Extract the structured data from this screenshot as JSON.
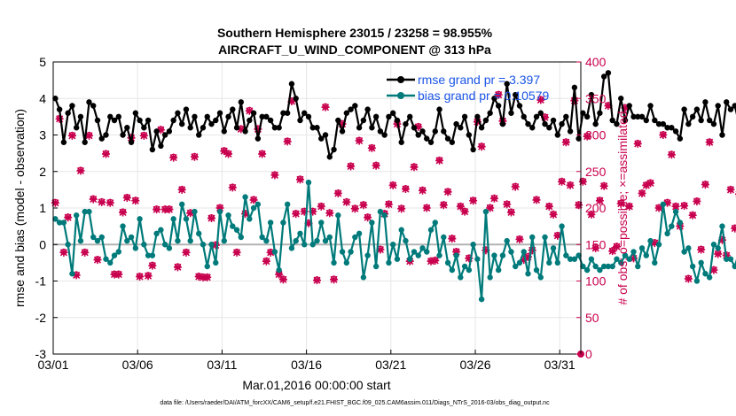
{
  "chart_data": {
    "type": "line",
    "title": "Southern Hemisphere 23015 / 23258 = 98.955%",
    "subtitle": "AIRCRAFT_U_WIND_COMPONENT @ 313 hPa",
    "xlabel": "Mar.01,2016 00:00:00 start",
    "ylabel": "rmse and bias (model - observation)",
    "y2label": "# of obs: o=possible; ×=assimilated",
    "footer": "data file: /Users/raeder/DAI/ATM_forcXX/CAM6_setup/f.e21.FHIST_BGC.f09_025.CAM6assim.011/Diags_NTrS_2016-03/obs_diag_output.nc",
    "x_ticks": [
      "03/01",
      "03/06",
      "03/11",
      "03/16",
      "03/21",
      "03/26",
      "03/31"
    ],
    "x_tick_days": [
      1,
      6,
      11,
      16,
      21,
      26,
      31
    ],
    "xlim": [
      1,
      32.25
    ],
    "ylim": [
      -3,
      5
    ],
    "y_ticks": [
      "-3",
      "-2",
      "-1",
      "0",
      "1",
      "2",
      "3",
      "4",
      "5"
    ],
    "y2lim": [
      0,
      400
    ],
    "y2_ticks": [
      "0",
      "50",
      "100",
      "150",
      "200",
      "250",
      "300",
      "350",
      "400"
    ],
    "grid": true,
    "legend": [
      "rmse grand pr = 3.397",
      "bias grand pr = 0.10579"
    ],
    "legend_position": "top-right",
    "colors": {
      "rmse": "#000000",
      "bias": "#007a7a",
      "obs": "#c8004e",
      "zero_line": "#b3b3b3",
      "legend_text": "#1a55e6"
    },
    "series": [
      {
        "name": "rmse",
        "values": [
          4.0,
          3.7,
          2.8,
          3.6,
          3.8,
          3.2,
          3.5,
          2.8,
          3.9,
          3.8,
          3.4,
          2.9,
          3.0,
          3.5,
          3.4,
          3.5,
          3.0,
          3.2,
          2.8,
          3.6,
          3.4,
          3.2,
          3.4,
          2.6,
          3.1,
          2.7,
          3.0,
          3.1,
          3.4,
          3.6,
          3.3,
          3.7,
          3.2,
          3.5,
          3.0,
          3.2,
          3.5,
          3.3,
          3.4,
          3.6,
          3.1,
          3.5,
          3.7,
          3.2,
          3.9,
          3.1,
          3.4,
          3.6,
          2.9,
          3.5,
          3.5,
          3.4,
          3.2,
          3.2,
          3.6,
          3.6,
          4.4,
          4.0,
          3.4,
          3.6,
          3.5,
          3.2,
          3.2,
          2.9,
          3.0,
          2.4,
          2.6,
          3.4,
          3.1,
          3.6,
          3.7,
          3.8,
          3.2,
          3.4,
          3.7,
          3.2,
          3.5,
          3.1,
          3.0,
          3.5,
          3.6,
          3.4,
          2.8,
          3.3,
          3.5,
          3.2,
          3.0,
          3.1,
          2.9,
          2.8,
          3.1,
          3.7,
          3.1,
          2.9,
          2.8,
          3.3,
          3.2,
          3.5,
          3.0,
          2.6,
          3.5,
          3.2,
          3.4,
          3.6,
          4.0,
          3.8,
          3.3,
          4.4,
          3.6,
          4.1,
          3.8,
          3.5,
          3.3,
          3.2,
          3.5,
          3.6,
          3.3,
          3.2,
          3.4,
          3.0,
          3.3,
          3.5,
          3.1,
          4.3,
          2.9,
          3.6,
          3.5,
          4.1,
          3.3,
          3.6,
          4.6,
          4.7,
          3.4,
          3.3,
          4.0,
          3.4,
          3.8,
          3.5,
          3.5,
          3.5,
          3.4,
          3.8,
          3.4,
          3.3,
          3.3,
          3.2,
          3.2,
          3.1,
          2.9,
          3.7,
          3.3,
          3.5,
          3.7,
          3.4,
          3.9,
          3.4,
          3.3,
          3.8,
          3.0,
          3.9,
          3.7,
          3.8,
          3.3,
          3.4,
          3.3,
          3.2,
          3.0,
          3.1,
          3.3,
          2.9,
          3.3,
          3.1,
          3.5,
          3.8,
          3.7,
          3.4,
          3.6,
          4.0,
          3.9,
          3.4,
          4.0,
          3.6,
          3.5,
          3.5,
          3.7,
          3.5,
          3.6,
          3.3,
          3.0,
          3.7,
          3.6,
          3.8,
          3.0,
          4.1
        ]
      },
      {
        "name": "bias",
        "values": [
          0.7,
          0.6,
          0.6,
          0.0,
          -0.8,
          0.8,
          0.1,
          0.9,
          0.9,
          0.2,
          0.1,
          0.2,
          -0.4,
          -0.5,
          -0.3,
          -0.2,
          0.5,
          0.1,
          0.2,
          -0.1,
          0.7,
          0.0,
          -0.3,
          -0.3,
          0.3,
          0.4,
          0.0,
          -0.1,
          0.7,
          0.1,
          1.1,
          0.7,
          0.1,
          0.9,
          0.3,
          0.0,
          -0.6,
          0.0,
          -0.5,
          0.9,
          0.1,
          0.8,
          0.5,
          0.4,
          0.2,
          1.3,
          0.7,
          1.0,
          1.1,
          0.2,
          0.1,
          0.6,
          -0.2,
          -0.7,
          0.6,
          1.1,
          -0.1,
          0.1,
          0.3,
          0.0,
          1.7,
          0.0,
          0.1,
          0.6,
          0.1,
          0.2,
          -0.5,
          0.8,
          -0.2,
          -0.5,
          -0.2,
          0.2,
          0.3,
          -0.9,
          -0.3,
          0.6,
          -0.6,
          0.9,
          0.8,
          -0.5,
          0.0,
          -0.4,
          0.4,
          0.1,
          -0.4,
          -0.2,
          -0.3,
          -0.1,
          -0.2,
          0.4,
          0.6,
          -0.3,
          0.2,
          -0.5,
          -0.7,
          -0.3,
          -0.9,
          -0.6,
          -0.7,
          0.0,
          -0.4,
          -1.5,
          0.9,
          -0.9,
          -0.3,
          -0.7,
          -0.3,
          0.1,
          -0.2,
          -0.6,
          -0.5,
          -0.2,
          -0.8,
          0.2,
          -0.7,
          -0.9,
          0.2,
          -0.5,
          -0.1,
          -0.5,
          0.5,
          -0.3,
          -0.4,
          -0.4,
          -0.3,
          -0.6,
          -0.7,
          -0.4,
          -0.6,
          -0.7,
          -0.6,
          -0.6,
          -0.6,
          -0.4,
          -0.5,
          -0.3,
          -0.4,
          -0.2,
          -0.6,
          -0.1,
          -0.3,
          0.1,
          -0.5,
          0.0,
          1.1,
          0.3,
          0.5,
          0.9,
          0.6,
          -0.2,
          -0.1,
          -0.6,
          -1.0,
          -0.5,
          -0.8,
          -0.9,
          0.0,
          -0.1,
          0.5,
          -0.4,
          -0.4,
          -0.6,
          -0.2,
          0.0,
          1.0,
          0.0,
          -0.3,
          0.3,
          -0.6,
          0.3,
          0.1,
          -0.1,
          1.0,
          -0.3,
          -0.6,
          0.3,
          0.1,
          -0.5,
          -1.1,
          -0.2,
          0.6,
          -0.4,
          -0.7,
          -0.3,
          -0.6,
          0.5,
          -0.2,
          0.2,
          -0.4,
          0.9,
          1.0,
          -0.3,
          -0.8,
          -0.7,
          -0.7,
          -1.1,
          -0.8,
          -0.7
        ]
      },
      {
        "name": "obs possible",
        "values": [
          208,
          323,
          140,
          188,
          300,
          109,
          252,
          140,
          300,
          213,
          130,
          209,
          275,
          208,
          110,
          110,
          195,
          215,
          297,
          211,
          107,
          300,
          108,
          122,
          199,
          308,
          199,
          199,
          270,
          120,
          226,
          140,
          194,
          271,
          107,
          106,
          106,
          187,
          150,
          201,
          279,
          275,
          229,
          140,
          309,
          193,
          334,
          212,
          309,
          275,
          128,
          140,
          246,
          110,
          103,
          292,
          347,
          193,
          240,
          196,
          180,
          196,
          102,
          203,
          339,
          194,
          103,
          221,
          316,
          209,
          258,
          200,
          293,
          205,
          188,
          283,
          259,
          144,
          193,
          206,
          232,
          316,
          200,
          227,
          128,
          257,
          312,
          225,
          201,
          128,
          129,
          266,
          205,
          223,
          159,
          141,
          203,
          196,
          132,
          211,
          319,
          285,
          143,
          201,
          214,
          356,
          320,
          206,
          195,
          230,
          158,
          130,
          134,
          143,
          212,
          349,
          325,
          203,
          192,
          163,
          237,
          291,
          232,
          348,
          205,
          237,
          299,
          192,
          146,
          211,
          231,
          341,
          142,
          148,
          207,
          338,
          203,
          132,
          289,
          221,
          232,
          235,
          153,
          201,
          301,
          208,
          274,
          203,
          176,
          204,
          104,
          191,
          210,
          144,
          233,
          291,
          116,
          138,
          157,
          136,
          226,
          173,
          220,
          137,
          275,
          210,
          123,
          158,
          190,
          156,
          222,
          243,
          114,
          212,
          287,
          314,
          207,
          157,
          216,
          138,
          207,
          258,
          343,
          209,
          248,
          308,
          326,
          130
        ]
      },
      {
        "name": "obs assimilated",
        "values": [
          207,
          322,
          139,
          187,
          299,
          108,
          251,
          139,
          299,
          212,
          129,
          208,
          274,
          207,
          109,
          109,
          194,
          214,
          296,
          210,
          106,
          299,
          107,
          121,
          198,
          307,
          198,
          198,
          269,
          119,
          225,
          139,
          193,
          270,
          106,
          105,
          105,
          186,
          149,
          200,
          278,
          274,
          228,
          139,
          308,
          192,
          333,
          211,
          308,
          274,
          127,
          139,
          245,
          109,
          102,
          291,
          346,
          192,
          239,
          195,
          179,
          195,
          101,
          202,
          338,
          193,
          102,
          220,
          315,
          208,
          257,
          199,
          292,
          204,
          187,
          282,
          258,
          143,
          192,
          205,
          231,
          315,
          199,
          226,
          127,
          256,
          311,
          224,
          200,
          127,
          128,
          265,
          204,
          222,
          158,
          140,
          202,
          195,
          131,
          210,
          318,
          284,
          142,
          200,
          213,
          355,
          319,
          205,
          194,
          229,
          157,
          129,
          133,
          142,
          211,
          348,
          324,
          202,
          191,
          162,
          236,
          290,
          231,
          347,
          204,
          236,
          298,
          191,
          145,
          210,
          230,
          340,
          141,
          147,
          206,
          337,
          202,
          131,
          288,
          220,
          231,
          234,
          152,
          200,
          300,
          207,
          273,
          202,
          175,
          203,
          103,
          190,
          209,
          143,
          232,
          290,
          115,
          137,
          156,
          135,
          225,
          172,
          219,
          136,
          274,
          209,
          122,
          157,
          189,
          155,
          221,
          242,
          113,
          211,
          286,
          313,
          206,
          156,
          215,
          137,
          206,
          257,
          342,
          208,
          247,
          307,
          325,
          129
        ]
      }
    ]
  }
}
